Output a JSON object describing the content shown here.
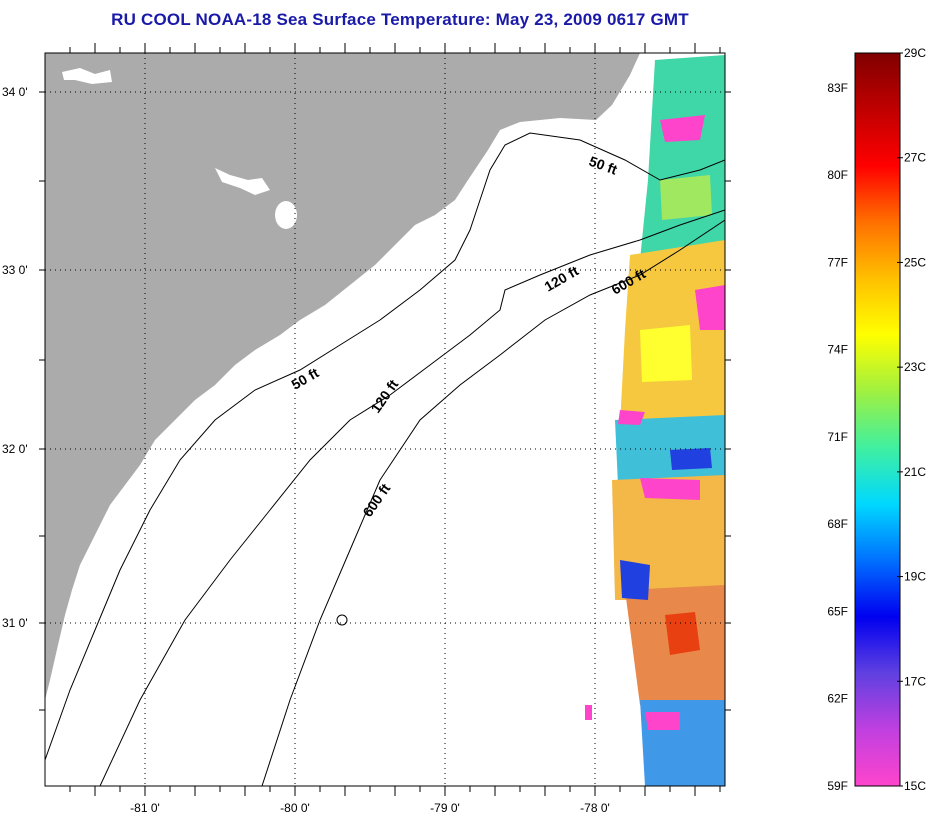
{
  "title": "RU COOL  NOAA-18  Sea Surface Temperature:  May 23, 2009 0617 GMT",
  "map": {
    "lat_labels": [
      "34 0'",
      "33 0'",
      "32 0'",
      "31 0'"
    ],
    "lon_labels": [
      "-81 0'",
      "-80 0'",
      "-79 0'",
      "-78 0'"
    ],
    "contour_labels": [
      {
        "text": "50 ft",
        "rotation": 20
      },
      {
        "text": "50 ft",
        "rotation": -30
      },
      {
        "text": "120 ft",
        "rotation": -30
      },
      {
        "text": "120 ft",
        "rotation": -55
      },
      {
        "text": "600 ft",
        "rotation": -30
      },
      {
        "text": "600 ft",
        "rotation": -55
      }
    ],
    "colors": {
      "land": "#ababab",
      "ocean": "#ffffff",
      "grid": "#000000"
    }
  },
  "colorbar": {
    "fahrenheit_labels": [
      "83F",
      "80F",
      "77F",
      "74F",
      "71F",
      "68F",
      "65F",
      "62F",
      "59F"
    ],
    "celsius_labels": [
      "29C",
      "27C",
      "25C",
      "23C",
      "21C",
      "19C",
      "17C",
      "15C"
    ],
    "gradient_stops": [
      "#ff44cc",
      "#c040e0",
      "#6040e0",
      "#0000f0",
      "#0070ff",
      "#00d8ff",
      "#40f0a0",
      "#a0f040",
      "#ffff00",
      "#ffc000",
      "#ff7000",
      "#ff0000",
      "#c00000",
      "#800000"
    ]
  }
}
